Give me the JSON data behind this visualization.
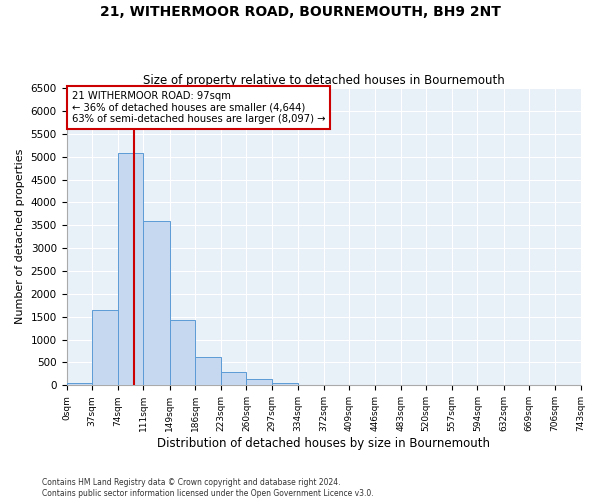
{
  "title": "21, WITHERMOOR ROAD, BOURNEMOUTH, BH9 2NT",
  "subtitle": "Size of property relative to detached houses in Bournemouth",
  "xlabel": "Distribution of detached houses by size in Bournemouth",
  "ylabel": "Number of detached properties",
  "bin_edges": [
    0,
    37,
    74,
    111,
    149,
    186,
    223,
    260,
    297,
    334,
    372,
    409,
    446,
    483,
    520,
    557,
    594,
    632,
    669,
    706,
    743
  ],
  "bar_heights": [
    50,
    1650,
    5080,
    3590,
    1420,
    610,
    300,
    140,
    60,
    5,
    5,
    0,
    0,
    0,
    0,
    0,
    0,
    0,
    0,
    0
  ],
  "bar_color": "#c5d8ef",
  "bar_edge_color": "#5b9bd5",
  "vline_x": 97,
  "vline_color": "#cc0000",
  "annotation_title": "21 WITHERMOOR ROAD: 97sqm",
  "annotation_line1": "← 36% of detached houses are smaller (4,644)",
  "annotation_line2": "63% of semi-detached houses are larger (8,097) →",
  "annotation_box_color": "#ffffff",
  "annotation_box_edge_color": "#cc0000",
  "ylim": [
    0,
    6500
  ],
  "yticks": [
    0,
    500,
    1000,
    1500,
    2000,
    2500,
    3000,
    3500,
    4000,
    4500,
    5000,
    5500,
    6000,
    6500
  ],
  "xtick_labels": [
    "0sqm",
    "37sqm",
    "74sqm",
    "111sqm",
    "149sqm",
    "186sqm",
    "223sqm",
    "260sqm",
    "297sqm",
    "334sqm",
    "372sqm",
    "409sqm",
    "446sqm",
    "483sqm",
    "520sqm",
    "557sqm",
    "594sqm",
    "632sqm",
    "669sqm",
    "706sqm",
    "743sqm"
  ],
  "footer_line1": "Contains HM Land Registry data © Crown copyright and database right 2024.",
  "footer_line2": "Contains public sector information licensed under the Open Government Licence v3.0.",
  "background_color": "#ffffff",
  "grid_color": "#d0d0d0",
  "plot_bg_color": "#e8f0f8"
}
